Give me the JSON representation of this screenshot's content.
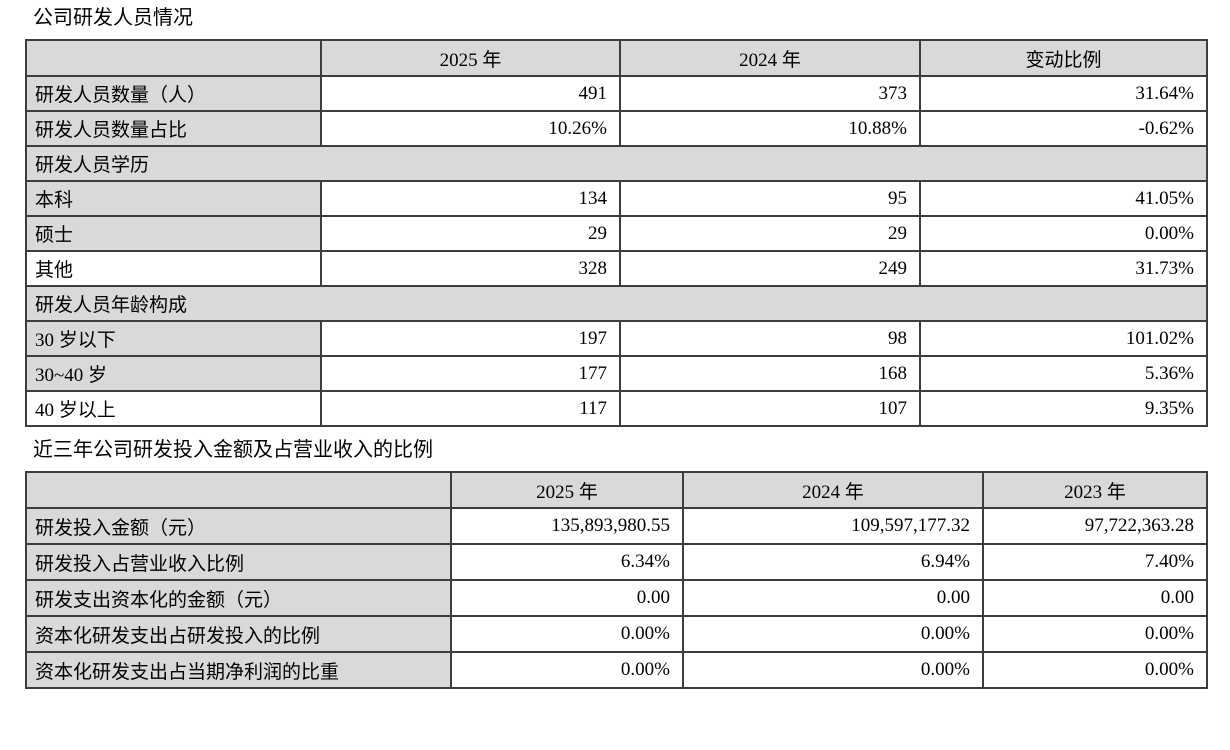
{
  "colors": {
    "header_fill": "#d9d9d9",
    "border": "#3d3d3d",
    "text": "#000000",
    "background": "#ffffff"
  },
  "personnel_table": {
    "title": "公司研发人员情况",
    "columns": [
      "",
      "2025 年",
      "2024 年",
      "变动比例"
    ],
    "rows": [
      {
        "type": "data",
        "label": "研发人员数量（人）",
        "label_fill": "gray",
        "values": [
          "491",
          "373",
          "31.64%"
        ]
      },
      {
        "type": "data",
        "label": "研发人员数量占比",
        "label_fill": "gray",
        "values": [
          "10.26%",
          "10.88%",
          "-0.62%"
        ]
      },
      {
        "type": "section",
        "label": "研发人员学历"
      },
      {
        "type": "data",
        "label": "本科",
        "label_fill": "gray",
        "values": [
          "134",
          "95",
          "41.05%"
        ]
      },
      {
        "type": "data",
        "label": "硕士",
        "label_fill": "gray",
        "values": [
          "29",
          "29",
          "0.00%"
        ]
      },
      {
        "type": "data",
        "label": "其他",
        "label_fill": "white",
        "values": [
          "328",
          "249",
          "31.73%"
        ]
      },
      {
        "type": "section",
        "label": "研发人员年龄构成"
      },
      {
        "type": "data",
        "label": "30 岁以下",
        "label_fill": "gray",
        "values": [
          "197",
          "98",
          "101.02%"
        ]
      },
      {
        "type": "data",
        "label": "30~40 岁",
        "label_fill": "gray",
        "values": [
          "177",
          "168",
          "5.36%"
        ]
      },
      {
        "type": "data",
        "label": "40 岁以上",
        "label_fill": "white",
        "values": [
          "117",
          "107",
          "9.35%"
        ]
      }
    ]
  },
  "investment_table": {
    "title": "近三年公司研发投入金额及占营业收入的比例",
    "columns": [
      "",
      "2025 年",
      "2024 年",
      "2023 年"
    ],
    "rows": [
      {
        "type": "data",
        "label": "研发投入金额（元）",
        "label_fill": "gray",
        "values": [
          "135,893,980.55",
          "109,597,177.32",
          "97,722,363.28"
        ]
      },
      {
        "type": "data",
        "label": "研发投入占营业收入比例",
        "label_fill": "gray",
        "values": [
          "6.34%",
          "6.94%",
          "7.40%"
        ]
      },
      {
        "type": "data",
        "label": "研发支出资本化的金额（元）",
        "label_fill": "gray",
        "values": [
          "0.00",
          "0.00",
          "0.00"
        ]
      },
      {
        "type": "data",
        "label": "资本化研发支出占研发投入的比例",
        "label_fill": "gray",
        "values": [
          "0.00%",
          "0.00%",
          "0.00%"
        ]
      },
      {
        "type": "data",
        "label": "资本化研发支出占当期净利润的比重",
        "label_fill": "gray",
        "values": [
          "0.00%",
          "0.00%",
          "0.00%"
        ]
      }
    ]
  }
}
